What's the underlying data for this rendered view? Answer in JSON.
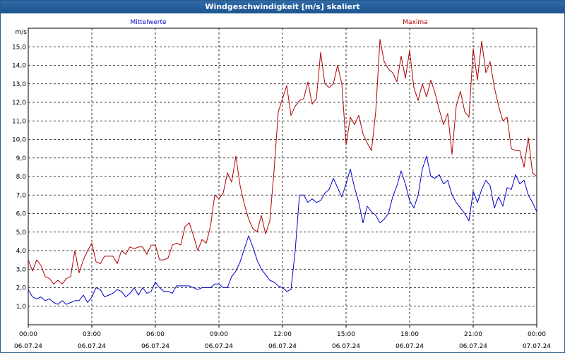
{
  "window": {
    "title": "Windgeschwindigkeit [m/s] skaliert"
  },
  "chart_data": {
    "type": "line",
    "title": "Windgeschwindigkeit [m/s] skaliert",
    "ylabel": "m/s",
    "xlim_hours": [
      0,
      24
    ],
    "ylim": [
      0,
      16
    ],
    "grid": true,
    "yticks": [
      "1,0",
      "2,0",
      "3,0",
      "4,0",
      "5,0",
      "6,0",
      "7,0",
      "8,0",
      "9,0",
      "10,0",
      "11,0",
      "12,0",
      "13,0",
      "14,0",
      "15,0"
    ],
    "xticks": [
      {
        "time": "00:00",
        "date": "06.07.24"
      },
      {
        "time": "03:00",
        "date": "06.07.24"
      },
      {
        "time": "06:00",
        "date": "06.07.24"
      },
      {
        "time": "09:00",
        "date": "06.07.24"
      },
      {
        "time": "12:00",
        "date": "06.07.24"
      },
      {
        "time": "15:00",
        "date": "06.07.24"
      },
      {
        "time": "18:00",
        "date": "06.07.24"
      },
      {
        "time": "21:00",
        "date": "06.07.24"
      },
      {
        "time": "00:00",
        "date": "07.07.24"
      }
    ],
    "series": [
      {
        "name": "Mittelwerte",
        "color": "#0000cc",
        "points": [
          [
            0,
            1.9
          ],
          [
            0.2,
            1.5
          ],
          [
            0.4,
            1.4
          ],
          [
            0.6,
            1.5
          ],
          [
            0.8,
            1.3
          ],
          [
            1.0,
            1.4
          ],
          [
            1.2,
            1.2
          ],
          [
            1.4,
            1.1
          ],
          [
            1.6,
            1.3
          ],
          [
            1.8,
            1.1
          ],
          [
            2.0,
            1.2
          ],
          [
            2.2,
            1.3
          ],
          [
            2.4,
            1.3
          ],
          [
            2.6,
            1.6
          ],
          [
            2.8,
            1.2
          ],
          [
            3.0,
            1.5
          ],
          [
            3.2,
            2.0
          ],
          [
            3.4,
            1.9
          ],
          [
            3.6,
            1.5
          ],
          [
            3.8,
            1.6
          ],
          [
            4.0,
            1.7
          ],
          [
            4.2,
            1.9
          ],
          [
            4.4,
            1.8
          ],
          [
            4.6,
            1.5
          ],
          [
            4.8,
            1.7
          ],
          [
            5.0,
            2.0
          ],
          [
            5.2,
            1.6
          ],
          [
            5.4,
            2.0
          ],
          [
            5.6,
            1.7
          ],
          [
            5.8,
            1.8
          ],
          [
            6.0,
            2.3
          ],
          [
            6.2,
            2.0
          ],
          [
            6.4,
            1.8
          ],
          [
            6.6,
            1.8
          ],
          [
            6.8,
            1.7
          ],
          [
            7.0,
            2.1
          ],
          [
            7.2,
            2.1
          ],
          [
            7.4,
            2.1
          ],
          [
            7.6,
            2.1
          ],
          [
            7.8,
            2.0
          ],
          [
            8.0,
            1.9
          ],
          [
            8.2,
            2.0
          ],
          [
            8.4,
            2.0
          ],
          [
            8.6,
            2.0
          ],
          [
            8.8,
            2.2
          ],
          [
            9.0,
            2.2
          ],
          [
            9.2,
            2.0
          ],
          [
            9.4,
            2.0
          ],
          [
            9.6,
            2.6
          ],
          [
            9.8,
            2.9
          ],
          [
            10.0,
            3.4
          ],
          [
            10.2,
            4.1
          ],
          [
            10.4,
            4.8
          ],
          [
            10.6,
            4.2
          ],
          [
            10.8,
            3.5
          ],
          [
            11.0,
            3.0
          ],
          [
            11.2,
            2.7
          ],
          [
            11.4,
            2.4
          ],
          [
            11.6,
            2.3
          ],
          [
            11.8,
            2.1
          ],
          [
            12.0,
            2.0
          ],
          [
            12.2,
            1.8
          ],
          [
            12.4,
            1.9
          ],
          [
            12.6,
            4.0
          ],
          [
            12.8,
            7.0
          ],
          [
            13.0,
            7.0
          ],
          [
            13.2,
            6.6
          ],
          [
            13.4,
            6.8
          ],
          [
            13.6,
            6.6
          ],
          [
            13.8,
            6.7
          ],
          [
            14.0,
            7.1
          ],
          [
            14.2,
            7.3
          ],
          [
            14.4,
            7.9
          ],
          [
            14.6,
            7.4
          ],
          [
            14.8,
            6.9
          ],
          [
            15.0,
            7.6
          ],
          [
            15.2,
            8.4
          ],
          [
            15.4,
            7.4
          ],
          [
            15.6,
            6.6
          ],
          [
            15.8,
            5.5
          ],
          [
            16.0,
            6.4
          ],
          [
            16.2,
            6.1
          ],
          [
            16.4,
            5.9
          ],
          [
            16.6,
            5.5
          ],
          [
            16.8,
            5.7
          ],
          [
            17.0,
            6.0
          ],
          [
            17.2,
            6.9
          ],
          [
            17.4,
            7.5
          ],
          [
            17.6,
            8.3
          ],
          [
            17.8,
            7.6
          ],
          [
            18.0,
            6.7
          ],
          [
            18.2,
            6.3
          ],
          [
            18.4,
            7.0
          ],
          [
            18.6,
            8.4
          ],
          [
            18.8,
            9.1
          ],
          [
            19.0,
            8.0
          ],
          [
            19.2,
            7.9
          ],
          [
            19.4,
            8.1
          ],
          [
            19.6,
            7.6
          ],
          [
            19.8,
            7.8
          ],
          [
            20.0,
            7.0
          ],
          [
            20.2,
            6.6
          ],
          [
            20.4,
            6.3
          ],
          [
            20.6,
            6.0
          ],
          [
            20.8,
            5.6
          ],
          [
            21.0,
            7.2
          ],
          [
            21.2,
            6.6
          ],
          [
            21.4,
            7.3
          ],
          [
            21.6,
            7.8
          ],
          [
            21.8,
            7.5
          ],
          [
            22.0,
            6.3
          ],
          [
            22.2,
            6.9
          ],
          [
            22.4,
            6.4
          ],
          [
            22.6,
            7.4
          ],
          [
            22.8,
            7.3
          ],
          [
            23.0,
            8.1
          ],
          [
            23.2,
            7.6
          ],
          [
            23.4,
            7.8
          ],
          [
            23.6,
            7.0
          ],
          [
            23.8,
            6.6
          ],
          [
            24.0,
            6.1
          ]
        ]
      },
      {
        "name": "Maxima",
        "color": "#b00000",
        "points": [
          [
            0,
            3.5
          ],
          [
            0.2,
            2.9
          ],
          [
            0.4,
            3.5
          ],
          [
            0.6,
            3.2
          ],
          [
            0.8,
            2.6
          ],
          [
            1.0,
            2.5
          ],
          [
            1.2,
            2.2
          ],
          [
            1.4,
            2.4
          ],
          [
            1.6,
            2.2
          ],
          [
            1.8,
            2.5
          ],
          [
            2.0,
            2.6
          ],
          [
            2.2,
            4.0
          ],
          [
            2.4,
            2.8
          ],
          [
            2.6,
            3.5
          ],
          [
            2.8,
            4.0
          ],
          [
            3.0,
            4.4
          ],
          [
            3.2,
            3.4
          ],
          [
            3.4,
            3.3
          ],
          [
            3.6,
            3.7
          ],
          [
            3.8,
            3.7
          ],
          [
            4.0,
            3.7
          ],
          [
            4.2,
            3.3
          ],
          [
            4.4,
            4.0
          ],
          [
            4.6,
            3.8
          ],
          [
            4.8,
            4.2
          ],
          [
            5.0,
            4.1
          ],
          [
            5.2,
            4.2
          ],
          [
            5.4,
            4.2
          ],
          [
            5.6,
            3.8
          ],
          [
            5.8,
            4.3
          ],
          [
            6.0,
            4.3
          ],
          [
            6.2,
            3.5
          ],
          [
            6.4,
            3.5
          ],
          [
            6.6,
            3.6
          ],
          [
            6.8,
            4.3
          ],
          [
            7.0,
            4.4
          ],
          [
            7.2,
            4.3
          ],
          [
            7.4,
            5.3
          ],
          [
            7.6,
            5.5
          ],
          [
            7.8,
            4.8
          ],
          [
            8.0,
            4.0
          ],
          [
            8.2,
            4.6
          ],
          [
            8.4,
            4.4
          ],
          [
            8.6,
            5.3
          ],
          [
            8.8,
            7.0
          ],
          [
            9.0,
            6.8
          ],
          [
            9.2,
            7.1
          ],
          [
            9.4,
            8.2
          ],
          [
            9.6,
            7.7
          ],
          [
            9.8,
            9.1
          ],
          [
            10.0,
            7.5
          ],
          [
            10.2,
            6.5
          ],
          [
            10.4,
            5.7
          ],
          [
            10.6,
            5.2
          ],
          [
            10.8,
            5.0
          ],
          [
            11.0,
            5.9
          ],
          [
            11.2,
            4.9
          ],
          [
            11.4,
            5.6
          ],
          [
            11.6,
            8.3
          ],
          [
            11.8,
            11.5
          ],
          [
            12.0,
            12.2
          ],
          [
            12.2,
            12.9
          ],
          [
            12.4,
            11.3
          ],
          [
            12.6,
            11.8
          ],
          [
            12.8,
            12.1
          ],
          [
            13.0,
            12.2
          ],
          [
            13.2,
            13.1
          ],
          [
            13.4,
            11.9
          ],
          [
            13.6,
            12.2
          ],
          [
            13.8,
            14.7
          ],
          [
            14.0,
            13.0
          ],
          [
            14.2,
            12.8
          ],
          [
            14.4,
            13.0
          ],
          [
            14.6,
            14.0
          ],
          [
            14.8,
            13.0
          ],
          [
            15.0,
            9.7
          ],
          [
            15.2,
            11.2
          ],
          [
            15.4,
            10.8
          ],
          [
            15.6,
            11.3
          ],
          [
            15.8,
            10.3
          ],
          [
            16.0,
            9.8
          ],
          [
            16.2,
            9.4
          ],
          [
            16.4,
            11.5
          ],
          [
            16.6,
            15.4
          ],
          [
            16.8,
            14.2
          ],
          [
            17.0,
            13.8
          ],
          [
            17.2,
            13.6
          ],
          [
            17.4,
            13.1
          ],
          [
            17.6,
            14.5
          ],
          [
            17.8,
            13.3
          ],
          [
            18.0,
            14.8
          ],
          [
            18.2,
            12.8
          ],
          [
            18.4,
            12.1
          ],
          [
            18.6,
            13.0
          ],
          [
            18.8,
            12.3
          ],
          [
            19.0,
            13.2
          ],
          [
            19.2,
            12.5
          ],
          [
            19.4,
            11.6
          ],
          [
            19.6,
            10.8
          ],
          [
            19.8,
            11.4
          ],
          [
            20.0,
            9.2
          ],
          [
            20.2,
            11.8
          ],
          [
            20.4,
            12.6
          ],
          [
            20.6,
            11.5
          ],
          [
            20.8,
            11.2
          ],
          [
            21.0,
            14.9
          ],
          [
            21.2,
            13.2
          ],
          [
            21.4,
            15.3
          ],
          [
            21.6,
            13.6
          ],
          [
            21.8,
            14.2
          ],
          [
            22.0,
            12.8
          ],
          [
            22.2,
            11.8
          ],
          [
            22.4,
            11.0
          ],
          [
            22.6,
            11.2
          ],
          [
            22.8,
            9.5
          ],
          [
            23.0,
            9.4
          ],
          [
            23.2,
            9.4
          ],
          [
            23.4,
            8.5
          ],
          [
            23.6,
            10.1
          ],
          [
            23.8,
            8.2
          ],
          [
            24.0,
            8.0
          ]
        ]
      }
    ]
  }
}
